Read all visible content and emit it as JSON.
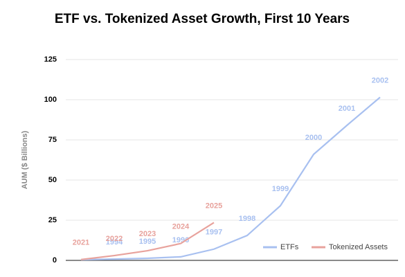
{
  "chart_data": {
    "type": "line",
    "title": "ETF vs. Tokenized Asset Growth, First 10 Years",
    "y_label": "AUM ($ Billions)",
    "categories": [
      null,
      null,
      null,
      null,
      null,
      null,
      null,
      null,
      null,
      null
    ],
    "series": [
      {
        "name": "ETFs",
        "color": "#a8c0f0",
        "values": [
          0.4,
          0.8,
          1.3,
          2.2,
          7,
          15.5,
          34,
          66,
          84,
          101.5
        ],
        "point_labels": [
          null,
          "1994",
          "1995",
          "1996",
          "1997",
          "1998",
          "1999",
          "2000",
          "2001",
          "2002"
        ]
      },
      {
        "name": "Tokenized Assets",
        "color": "#e8a29c",
        "values": [
          0.5,
          3,
          6,
          10.5,
          23.5,
          null,
          null,
          null,
          null,
          null
        ],
        "point_labels": [
          "2021",
          "2022",
          "2023",
          "2024",
          "2025",
          null,
          null,
          null,
          null,
          null
        ]
      }
    ],
    "ylim": [
      0,
      125
    ],
    "yticks": [
      0,
      25,
      50,
      75,
      100,
      125
    ],
    "grid": true,
    "legend": "lower right"
  }
}
